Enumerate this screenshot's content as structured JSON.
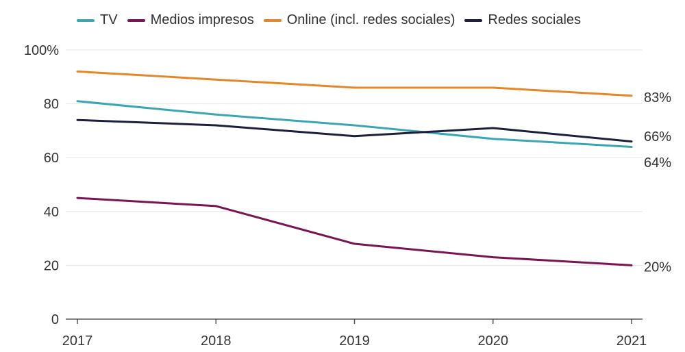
{
  "chart_data": {
    "type": "line",
    "title": "",
    "xlabel": "",
    "ylabel": "",
    "x": [
      "2017",
      "2018",
      "2019",
      "2020",
      "2021"
    ],
    "ylim": [
      0,
      100
    ],
    "yticks": [
      0,
      20,
      40,
      60,
      80,
      100
    ],
    "ytick_labels": [
      "0",
      "20",
      "40",
      "60",
      "80",
      "100%"
    ],
    "grid": true,
    "legend_position": "top",
    "series": [
      {
        "name": "TV",
        "color": "#3aa6b3",
        "values": [
          81,
          76,
          72,
          67,
          64
        ],
        "end_label": "64%"
      },
      {
        "name": "Medios impresos",
        "color": "#7a1452",
        "values": [
          45,
          42,
          28,
          23,
          20
        ],
        "end_label": "20%"
      },
      {
        "name": "Online (incl. redes sociales)",
        "color": "#e6862a",
        "values": [
          92,
          89,
          86,
          86,
          83
        ],
        "end_label": "83%"
      },
      {
        "name": "Redes sociales",
        "color": "#1c1f3d",
        "values": [
          74,
          72,
          68,
          71,
          66
        ],
        "end_label": "66%"
      }
    ]
  }
}
